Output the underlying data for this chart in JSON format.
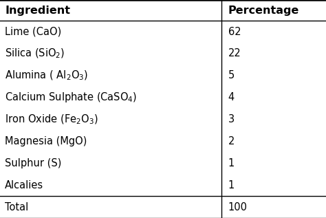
{
  "col_headers": [
    "Ingredient",
    "Percentage"
  ],
  "rows": [
    [
      "Lime (CaO)",
      "62"
    ],
    [
      "Silica (SiO$_2$)",
      "22"
    ],
    [
      "Alumina ( Al$_2$O$_3$)",
      "5"
    ],
    [
      "Calcium Sulphate (CaSO$_4$)",
      "4"
    ],
    [
      "Iron Oxide (Fe$_2$O$_3$)",
      "3"
    ],
    [
      "Magnesia (MgO)",
      "2"
    ],
    [
      "Sulphur (S)",
      "1"
    ],
    [
      "Alcalies",
      "1"
    ],
    [
      "Total",
      "100"
    ]
  ],
  "bg_color": "#ffffff",
  "text_color": "#000000",
  "header_fontsize": 11.5,
  "row_fontsize": 10.5,
  "col_split": 0.68,
  "total_row_index": 8,
  "fig_width": 4.74,
  "fig_height": 3.17,
  "dpi": 100
}
